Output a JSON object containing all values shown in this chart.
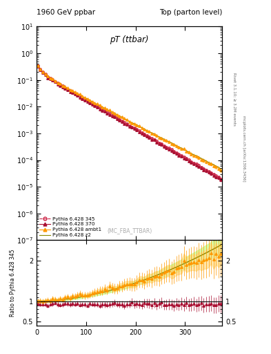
{
  "title_left": "1960 GeV ppbar",
  "title_right": "Top (parton level)",
  "plot_title": "pT (ttbar)",
  "watermark": "(MC_FBA_TTBAR)",
  "right_label_top": "Rivet 3.1.10; ≥ 3.2M events",
  "right_label_bot": "mcplots.cern.ch [arXiv:1306.3436]",
  "ylabel_bot": "Ratio to Pythia 6.428 345",
  "xlim": [
    0,
    375
  ],
  "xticks": [
    0,
    100,
    200,
    300
  ],
  "series": [
    {
      "label": "Pythia 6.428 345",
      "color": "#cc2244",
      "linestyle": "--",
      "marker": "o"
    },
    {
      "label": "Pythia 6.428 370",
      "color": "#aa1133",
      "linestyle": "-",
      "marker": "^"
    },
    {
      "label": "Pythia 6.428 ambt1",
      "color": "#ff9900",
      "linestyle": "-",
      "marker": "^"
    },
    {
      "label": "Pythia 6.428 z2",
      "color": "#888800",
      "linestyle": "-",
      "marker": null
    }
  ],
  "bg_color": "#ffffff",
  "ratio_band_color_z2": "#ccff99",
  "ratio_band_color_ambt1": "#ffdd88"
}
